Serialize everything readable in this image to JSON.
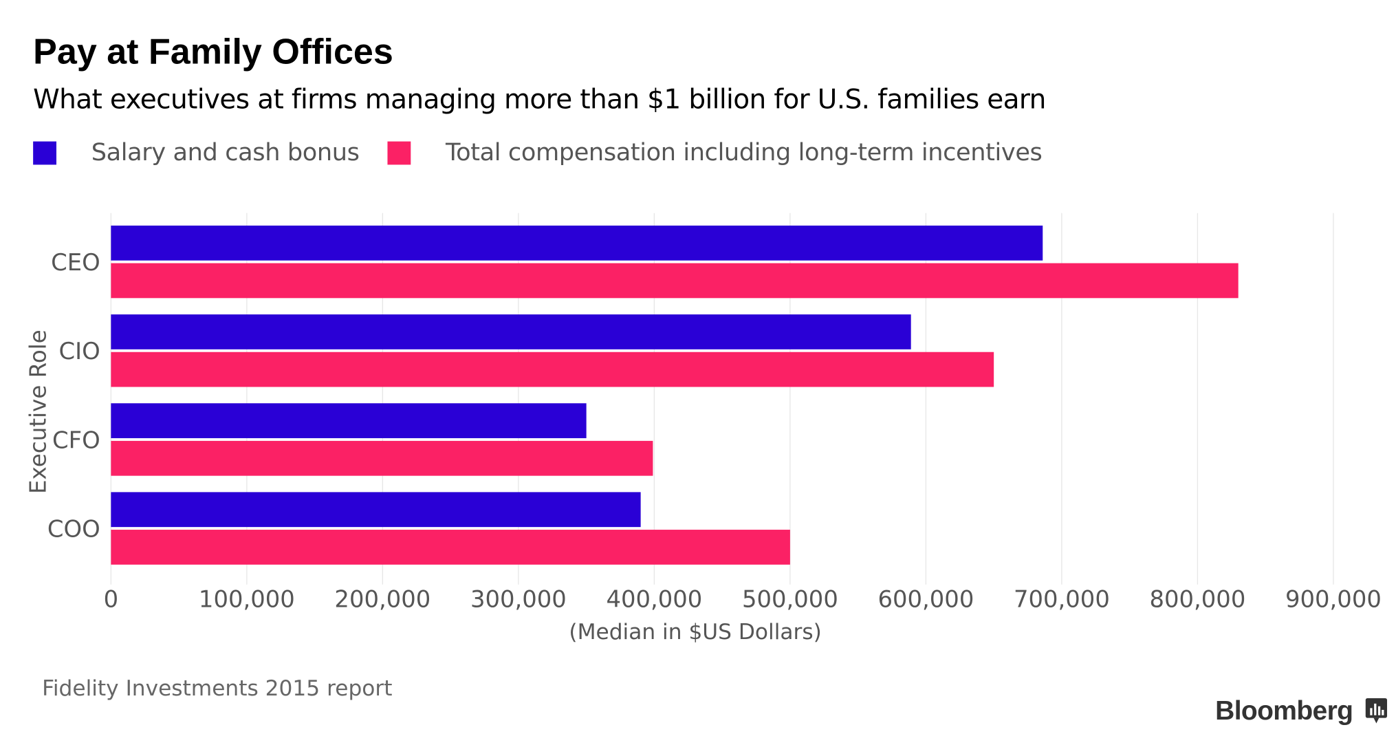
{
  "title": "Pay at Family Offices",
  "subtitle": "What executives at firms managing more than $1 billion for U.S. families earn",
  "source": "Fidelity Investments 2015 report",
  "brand": "Bloomberg",
  "chart_data": {
    "type": "bar",
    "orientation": "horizontal",
    "title": "Pay at Family Offices",
    "subtitle": "What executives at firms managing more than $1 billion for U.S. families earn",
    "xlabel": "(Median in $US Dollars)",
    "ylabel": "Executive Role",
    "categories": [
      "CEO",
      "CIO",
      "CFO",
      "COO"
    ],
    "series": [
      {
        "name": "Salary and cash bonus",
        "color": "#2a00d6",
        "values": [
          686000,
          589000,
          350000,
          390000
        ]
      },
      {
        "name": "Total compensation including long-term incentives",
        "color": "#fb2165",
        "values": [
          830000,
          650000,
          399000,
          500000
        ]
      }
    ],
    "xlim": [
      0,
      900000
    ],
    "xticks": [
      0,
      100000,
      200000,
      300000,
      400000,
      500000,
      600000,
      700000,
      800000,
      900000
    ],
    "xtick_labels": [
      "0",
      "100,000",
      "200,000",
      "300,000",
      "400,000",
      "500,000",
      "600,000",
      "700,000",
      "800,000",
      "900,000"
    ],
    "grid": "vertical",
    "legend": "top-left"
  }
}
